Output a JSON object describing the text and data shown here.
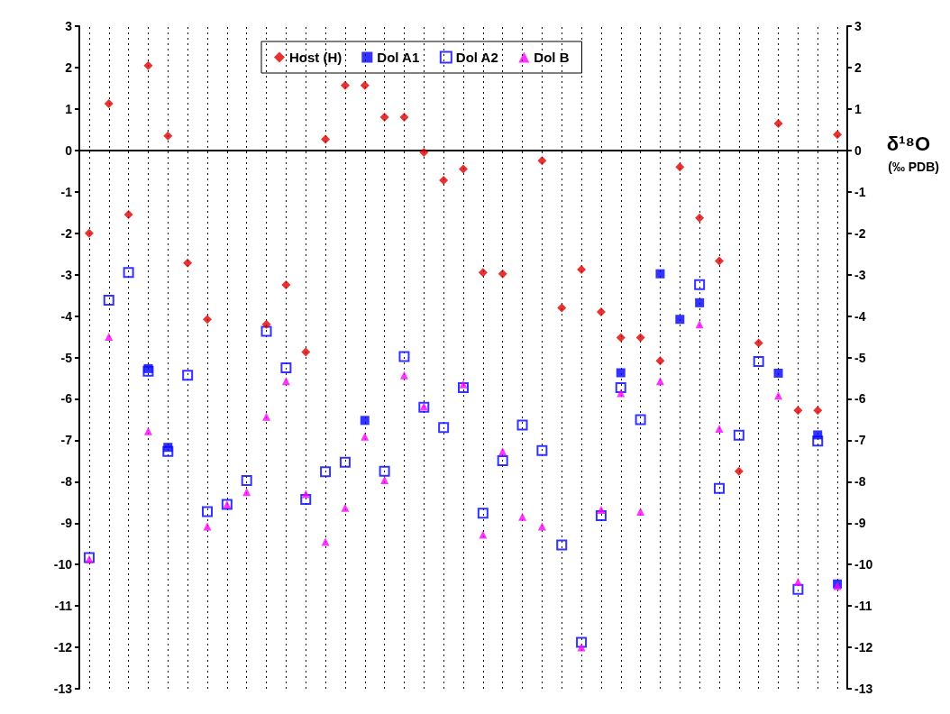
{
  "chart_data": {
    "type": "scatter",
    "y2label": "δ¹⁸O (‰ PDB)",
    "categories": [
      null,
      null,
      null,
      null,
      null,
      null,
      null,
      null,
      null,
      null,
      null,
      null,
      null,
      null,
      null,
      null,
      null,
      null,
      null,
      null,
      null,
      null,
      null,
      null,
      null,
      null,
      null,
      null,
      null,
      null,
      null,
      null,
      null,
      null,
      null,
      null,
      null,
      null,
      null
    ],
    "series": [
      {
        "name": "Host (H)",
        "color": "#e00000",
        "marker": "diamond",
        "values": [
          -2.0,
          1.13,
          -1.55,
          2.05,
          0.35,
          -2.72,
          -4.08,
          null,
          null,
          -4.2,
          -3.25,
          -4.87,
          0.27,
          1.57,
          1.57,
          0.8,
          0.8,
          -0.05,
          -0.72,
          -0.45,
          -2.95,
          -2.98,
          null,
          -0.25,
          -3.8,
          -2.88,
          -3.9,
          -4.52,
          -4.52,
          -5.08,
          -0.4,
          -1.63,
          -2.67,
          -7.75,
          -4.65,
          0.65,
          -6.28,
          -6.28,
          0.38
        ]
      },
      {
        "name": "Dol A1",
        "color": "#0000ff",
        "marker": "square",
        "values": [
          null,
          null,
          null,
          -5.27,
          -7.17,
          null,
          null,
          null,
          null,
          null,
          null,
          null,
          null,
          null,
          -6.52,
          null,
          null,
          null,
          null,
          null,
          null,
          null,
          null,
          null,
          null,
          null,
          null,
          -5.37,
          null,
          -2.98,
          -4.08,
          -3.68,
          null,
          null,
          null,
          -5.38,
          null,
          -6.87,
          -10.47
        ]
      },
      {
        "name": "Dol A2",
        "color": "#0000ff",
        "marker": "square",
        "values": [
          -9.83,
          -3.62,
          -2.95,
          -5.33,
          -7.27,
          -5.43,
          -8.72,
          -8.55,
          -7.97,
          -4.37,
          -5.25,
          -8.43,
          -7.76,
          -7.53,
          null,
          -7.75,
          -4.98,
          -6.2,
          -6.69,
          -5.73,
          -8.76,
          -7.49,
          -6.63,
          -7.25,
          -9.53,
          -11.88,
          -8.82,
          -5.73,
          -6.5,
          null,
          null,
          -3.24,
          -8.16,
          -6.88,
          -5.1,
          null,
          -10.6,
          -7.02,
          null
        ]
      },
      {
        "name": "Dol B",
        "color": "#ff00ff",
        "marker": "triangle",
        "values": [
          -9.87,
          -4.5,
          null,
          -6.78,
          null,
          null,
          -9.08,
          -8.55,
          -8.25,
          -6.43,
          -5.57,
          -8.3,
          -9.45,
          -8.63,
          -6.91,
          -7.96,
          -5.43,
          -6.18,
          null,
          -5.65,
          -9.28,
          -7.27,
          -8.85,
          -9.08,
          null,
          -12.0,
          -8.68,
          -5.86,
          -8.72,
          -5.57,
          null,
          -4.2,
          -6.72,
          null,
          null,
          -5.92,
          -10.42,
          null,
          -10.52
        ]
      }
    ],
    "ylim": [
      -13,
      3
    ],
    "yticks": [
      -13,
      -12,
      -11,
      -10,
      -9,
      -8,
      -7,
      -6,
      -5,
      -4,
      -3,
      -2,
      -1,
      0,
      1,
      2,
      3
    ],
    "y2lim": [
      -13,
      3
    ],
    "y2ticks": [
      -13,
      -12,
      -11,
      -10,
      -9,
      -8,
      -7,
      -6,
      -5,
      -4,
      -3,
      -2,
      -1,
      0,
      1,
      2,
      3
    ],
    "grid": "x",
    "legend": "top"
  }
}
